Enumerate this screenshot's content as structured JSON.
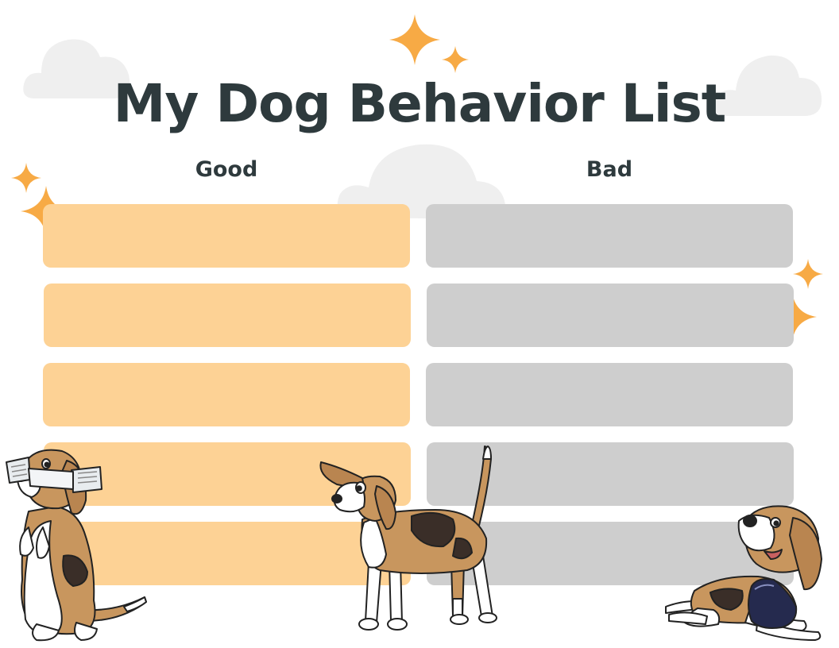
{
  "title": "My Dog Behavior List",
  "columns": {
    "good": "Good",
    "bad": "Bad"
  },
  "rows": 5,
  "colors": {
    "title": "#2e3a3d",
    "good_row": "#fdd295",
    "bad_row": "#cecece",
    "sparkle": "#f7aa45",
    "cloud": "#efefef"
  }
}
